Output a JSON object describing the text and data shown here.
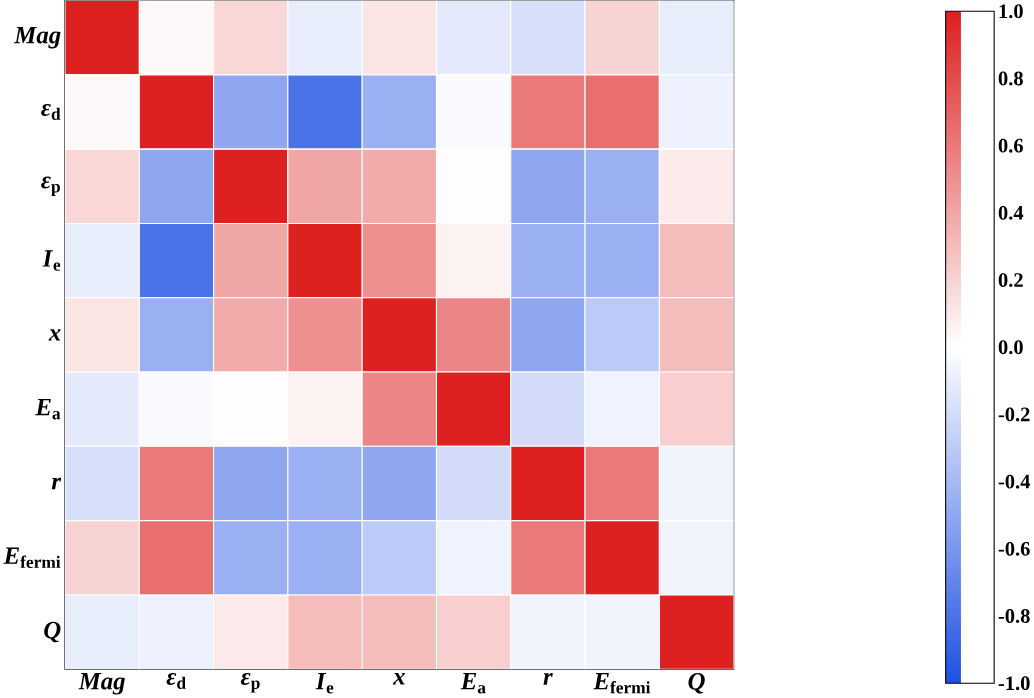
{
  "chart_data": {
    "type": "heatmap",
    "categories": [
      "*Mag*",
      "*ε*$_{d}$",
      "*ε*$_{p}$",
      "*I*$_{e}$",
      "*x*",
      "*E*$_{a}$",
      "*r*",
      "*E*$_{fermi}$",
      "*Q*"
    ],
    "y_categories": [
      "*Mag*",
      "*ε*$_{d}$",
      "*ε*$_{p}$",
      "*I*$_{e}$",
      "*x*",
      "*E*$_{a}$",
      "*r*",
      "*E*$_{fermi}$",
      "*Q*"
    ],
    "cells": [
      [
        1,
        0.03,
        0.18,
        -0.1,
        0.12,
        -0.12,
        -0.18,
        0.2,
        -0.1
      ],
      [
        0.03,
        1,
        -0.5,
        -0.8,
        -0.45,
        -0.03,
        0.6,
        0.65,
        -0.08
      ],
      [
        0.18,
        -0.5,
        1,
        0.4,
        0.38,
        -0.01,
        -0.5,
        -0.45,
        0.1
      ],
      [
        -0.1,
        -0.8,
        0.4,
        1,
        0.5,
        0.06,
        -0.45,
        -0.45,
        0.3
      ],
      [
        0.12,
        -0.45,
        0.38,
        0.5,
        1,
        0.55,
        -0.5,
        -0.3,
        0.3
      ],
      [
        -0.12,
        -0.03,
        -0.01,
        0.06,
        0.55,
        1,
        -0.2,
        -0.07,
        0.22
      ],
      [
        -0.18,
        0.6,
        -0.5,
        -0.45,
        -0.5,
        -0.2,
        1,
        0.6,
        -0.06
      ],
      [
        0.2,
        0.65,
        -0.45,
        -0.45,
        -0.3,
        -0.07,
        0.6,
        1,
        -0.06
      ],
      [
        -0.1,
        -0.08,
        0.1,
        0.3,
        0.3,
        0.22,
        -0.06,
        -0.06,
        1
      ]
    ],
    "clim": [
      -1,
      1
    ],
    "cticks": [
      {
        "value": 1,
        "label": "1.0"
      },
      {
        "value": 0.8,
        "label": "0.8"
      },
      {
        "value": 0.6,
        "label": "0.6"
      },
      {
        "value": 0.4,
        "label": "0.4"
      },
      {
        "value": 0.2,
        "label": "0.2"
      },
      {
        "value": 0,
        "label": "0.0"
      },
      {
        "value": -0.2,
        "label": "-0.2"
      },
      {
        "value": -0.4,
        "label": "-0.4"
      },
      {
        "value": -0.6,
        "label": "-0.6"
      },
      {
        "value": -0.8,
        "label": "-0.8"
      },
      {
        "value": -1,
        "label": "-1.0"
      }
    ]
  }
}
